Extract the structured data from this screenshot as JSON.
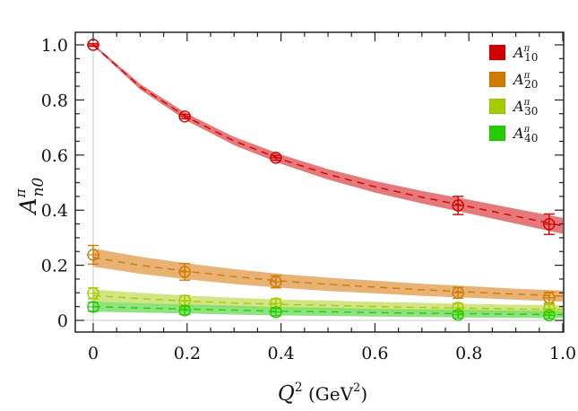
{
  "chart_data": {
    "type": "line",
    "title": "",
    "xlabel": "Q^2 (GeV^2)",
    "ylabel": "A^π_n0",
    "xlim": [
      -0.04,
      1.0
    ],
    "ylim": [
      -0.045,
      1.05
    ],
    "xticks": [
      0,
      0.2,
      0.4,
      0.6,
      0.8,
      1.0
    ],
    "xtick_labels": [
      "0",
      "0.2",
      "0.4",
      "0.6",
      "0.8",
      "1.0"
    ],
    "yticks": [
      0,
      0.2,
      0.4,
      0.6,
      0.8,
      1.0
    ],
    "ytick_labels": [
      "0",
      "0.2",
      "0.4",
      "0.6",
      "0.8",
      "1.0"
    ],
    "grid": false,
    "legend_position": "upper right",
    "reference_lines": {
      "x": 0,
      "y": 0,
      "color": "#c8c8c8"
    },
    "series": [
      {
        "name": "A^π_10",
        "legend_base": "A",
        "legend_sup": "π",
        "legend_sub": "10",
        "color": "#d10000",
        "band_color": "#e06060",
        "points": [
          {
            "x": 0.0,
            "y": 1.0,
            "err": 0.005
          },
          {
            "x": 0.195,
            "y": 0.74,
            "err": 0.008
          },
          {
            "x": 0.389,
            "y": 0.59,
            "err": 0.009
          },
          {
            "x": 0.777,
            "y": 0.417,
            "err": 0.033
          },
          {
            "x": 0.971,
            "y": 0.349,
            "err": 0.037
          }
        ],
        "fit": {
          "x": [
            0,
            0.1,
            0.2,
            0.3,
            0.4,
            0.5,
            0.6,
            0.7,
            0.8,
            0.9,
            1.0
          ],
          "y": [
            1.0,
            0.848,
            0.737,
            0.651,
            0.585,
            0.53,
            0.485,
            0.447,
            0.413,
            0.378,
            0.343
          ],
          "err": [
            0.004,
            0.01,
            0.013,
            0.015,
            0.017,
            0.019,
            0.021,
            0.023,
            0.025,
            0.027,
            0.029
          ]
        }
      },
      {
        "name": "A^π_20",
        "legend_base": "A",
        "legend_sup": "π",
        "legend_sub": "20",
        "color": "#d17a00",
        "band_color": "#e3a55a",
        "points": [
          {
            "x": 0.0,
            "y": 0.238,
            "err": 0.034
          },
          {
            "x": 0.195,
            "y": 0.176,
            "err": 0.03
          },
          {
            "x": 0.389,
            "y": 0.14,
            "err": 0.022
          },
          {
            "x": 0.777,
            "y": 0.1,
            "err": 0.02
          },
          {
            "x": 0.971,
            "y": 0.082,
            "err": 0.02
          }
        ],
        "fit": {
          "x": [
            0,
            0.1,
            0.2,
            0.3,
            0.4,
            0.5,
            0.6,
            0.7,
            0.8,
            0.9,
            1.0
          ],
          "y": [
            0.228,
            0.2,
            0.178,
            0.159,
            0.143,
            0.131,
            0.121,
            0.111,
            0.103,
            0.095,
            0.088
          ],
          "err": [
            0.033,
            0.031,
            0.029,
            0.027,
            0.025,
            0.024,
            0.023,
            0.022,
            0.021,
            0.02,
            0.02
          ]
        }
      },
      {
        "name": "A^π_30",
        "legend_base": "A",
        "legend_sup": "π",
        "legend_sub": "30",
        "color": "#a6cc00",
        "band_color": "#c9e070",
        "points": [
          {
            "x": 0.0,
            "y": 0.098,
            "err": 0.02
          },
          {
            "x": 0.195,
            "y": 0.072,
            "err": 0.018
          },
          {
            "x": 0.389,
            "y": 0.062,
            "err": 0.016
          },
          {
            "x": 0.777,
            "y": 0.046,
            "err": 0.015
          },
          {
            "x": 0.971,
            "y": 0.042,
            "err": 0.015
          }
        ],
        "fit": {
          "x": [
            0,
            0.1,
            0.2,
            0.3,
            0.4,
            0.5,
            0.6,
            0.7,
            0.8,
            0.9,
            1.0
          ],
          "y": [
            0.09,
            0.079,
            0.07,
            0.063,
            0.058,
            0.054,
            0.05,
            0.047,
            0.044,
            0.041,
            0.039
          ],
          "err": [
            0.022,
            0.021,
            0.02,
            0.019,
            0.018,
            0.018,
            0.017,
            0.017,
            0.016,
            0.016,
            0.016
          ]
        }
      },
      {
        "name": "A^π_40",
        "legend_base": "A",
        "legend_sup": "π",
        "legend_sub": "40",
        "color": "#26cc00",
        "band_color": "#7ade6a",
        "points": [
          {
            "x": 0.0,
            "y": 0.049,
            "err": 0.016
          },
          {
            "x": 0.195,
            "y": 0.036,
            "err": 0.014
          },
          {
            "x": 0.389,
            "y": 0.03,
            "err": 0.013
          },
          {
            "x": 0.777,
            "y": 0.02,
            "err": 0.012
          },
          {
            "x": 0.971,
            "y": 0.018,
            "err": 0.012
          }
        ],
        "fit": {
          "x": [
            0,
            0.1,
            0.2,
            0.3,
            0.4,
            0.5,
            0.6,
            0.7,
            0.8,
            0.9,
            1.0
          ],
          "y": [
            0.05,
            0.045,
            0.041,
            0.037,
            0.033,
            0.031,
            0.028,
            0.026,
            0.024,
            0.022,
            0.021
          ],
          "err": [
            0.018,
            0.017,
            0.016,
            0.016,
            0.015,
            0.015,
            0.014,
            0.014,
            0.014,
            0.013,
            0.013
          ]
        }
      }
    ]
  },
  "axes": {
    "ylabel_base": "A",
    "ylabel_sup": "π",
    "ylabel_sub": "n0",
    "xlabel_base": "Q",
    "xlabel_sup": "2",
    "xlabel_unit_open": " (GeV",
    "xlabel_unit_sup": "2",
    "xlabel_unit_close": ")"
  }
}
